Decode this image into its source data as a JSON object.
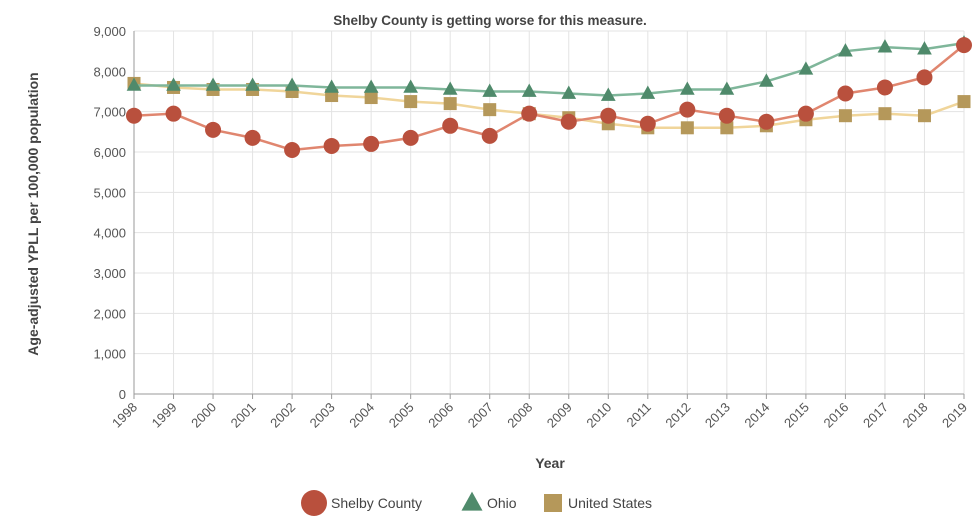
{
  "chart_data": {
    "type": "line",
    "title": "Shelby County is getting worse for this measure.",
    "xlabel": "Year",
    "ylabel": "Age-adjusted YPLL per 100,000 population",
    "ylim": [
      0,
      9000
    ],
    "yticks": [
      0,
      1000,
      2000,
      3000,
      4000,
      5000,
      6000,
      7000,
      8000,
      9000
    ],
    "ytick_labels": [
      "0",
      "1,000",
      "2,000",
      "3,000",
      "4,000",
      "5,000",
      "6,000",
      "7,000",
      "8,000",
      "9,000"
    ],
    "grid": true,
    "legend_position": "bottom-center",
    "categories": [
      "1998",
      "1999",
      "2000",
      "2001",
      "2002",
      "2003",
      "2004",
      "2005",
      "2006",
      "2007",
      "2008",
      "2009",
      "2010",
      "2011",
      "2012",
      "2013",
      "2014",
      "2015",
      "2016",
      "2017",
      "2018",
      "2019"
    ],
    "series": [
      {
        "name": "United States",
        "marker": "square",
        "color": "#b5985a",
        "line_color": "#f0d59a",
        "values": [
          7700,
          7600,
          7550,
          7550,
          7500,
          7400,
          7350,
          7250,
          7200,
          7050,
          6950,
          6850,
          6700,
          6600,
          6600,
          6600,
          6650,
          6800,
          6900,
          6950,
          6900,
          7250
        ]
      },
      {
        "name": "Ohio",
        "marker": "triangle",
        "color": "#4f8a6b",
        "line_color": "#7fb69a",
        "values": [
          7650,
          7650,
          7650,
          7650,
          7650,
          7600,
          7600,
          7600,
          7550,
          7500,
          7500,
          7450,
          7400,
          7450,
          7550,
          7550,
          7750,
          8050,
          8500,
          8600,
          8550,
          8700
        ]
      },
      {
        "name": "Shelby County",
        "marker": "circle",
        "color": "#b9503d",
        "line_color": "#e0866f",
        "values": [
          6900,
          6950,
          6550,
          6350,
          6050,
          6150,
          6200,
          6350,
          6650,
          6400,
          6950,
          6750,
          6900,
          6700,
          7050,
          6900,
          6750,
          6950,
          7450,
          7600,
          7850,
          8650
        ]
      }
    ],
    "legend_order": [
      "Shelby County",
      "Ohio",
      "United States"
    ]
  }
}
